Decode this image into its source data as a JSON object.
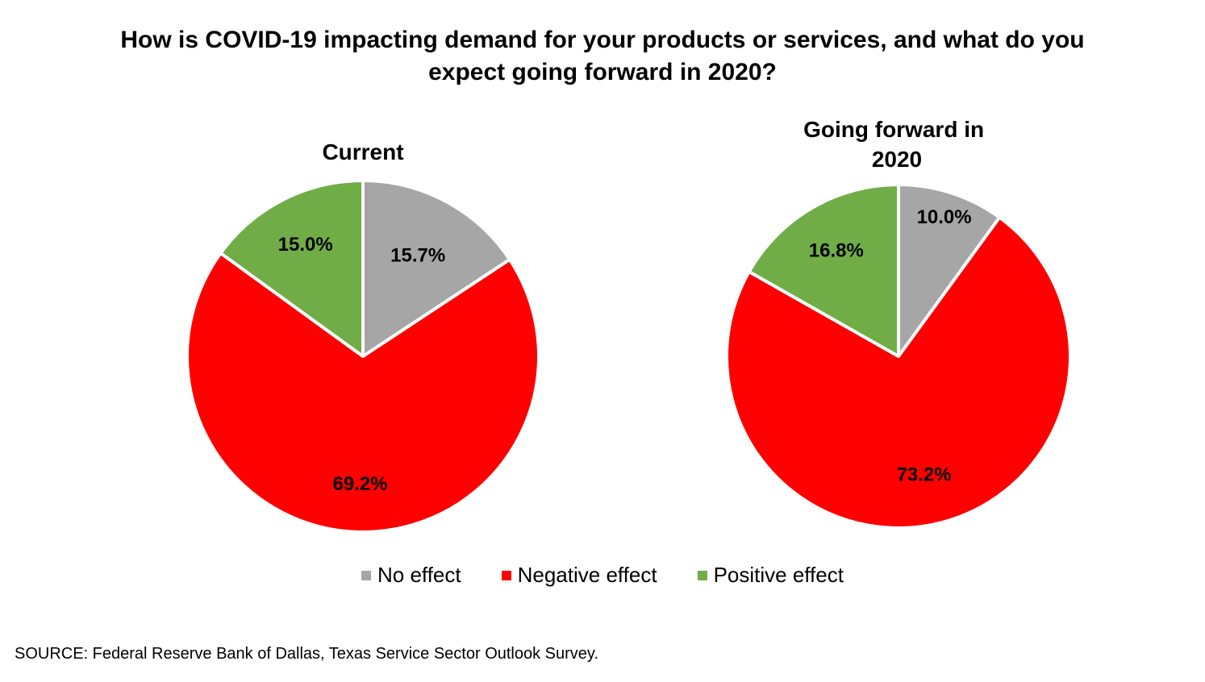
{
  "title_line1": "How is COVID-19 impacting demand for your products or services, and what do you",
  "title_line2": "expect going forward in 2020?",
  "colors": {
    "No effect": "#a6a6a6",
    "Negative effect": "#ff0000",
    "Positive effect": "#70ad47"
  },
  "chart_data": [
    {
      "type": "pie",
      "title": "Current",
      "categories": [
        "No effect",
        "Negative effect",
        "Positive effect"
      ],
      "values": [
        15.7,
        69.2,
        15.0
      ],
      "labels": [
        "15.7%",
        "69.2%",
        "15.0%"
      ],
      "start": "12 o'clock",
      "direction": "clockwise"
    },
    {
      "type": "pie",
      "title": "Going forward in 2020",
      "title_lines": [
        "Going forward in",
        "2020"
      ],
      "categories": [
        "No effect",
        "Negative effect",
        "Positive effect"
      ],
      "values": [
        10.0,
        73.2,
        16.8
      ],
      "labels": [
        "10.0%",
        "73.2%",
        "16.8%"
      ],
      "start": "12 o'clock",
      "direction": "clockwise"
    }
  ],
  "legend": {
    "placement": "bottom",
    "items": [
      "No effect",
      "Negative effect",
      "Positive effect"
    ]
  },
  "source": "SOURCE: Federal Reserve Bank of Dallas, Texas Service Sector Outlook Survey."
}
